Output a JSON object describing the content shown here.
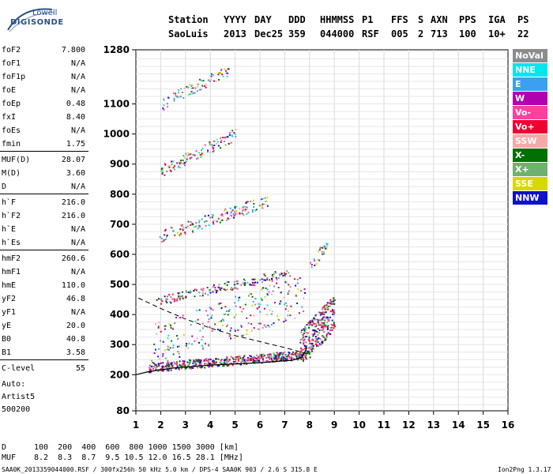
{
  "logo": {
    "line1": "Lowell",
    "line2": "DIGISONDE"
  },
  "header": {
    "row1": [
      "Station",
      "YYYY",
      "DAY",
      "DDD",
      "HHMMSS",
      "P1",
      "FFS",
      "S",
      "AXN",
      "PPS",
      "IGA",
      "PS"
    ],
    "row2": [
      "SaoLuis",
      "2013",
      "Dec25",
      "359",
      "044000",
      "RSF",
      "005",
      "2",
      "713",
      "100",
      "10+",
      "22"
    ]
  },
  "params": [
    {
      "k": "foF2",
      "v": "7.800"
    },
    {
      "k": "foF1",
      "v": "N/A"
    },
    {
      "k": "foF1p",
      "v": "N/A"
    },
    {
      "k": "foE",
      "v": "N/A"
    },
    {
      "k": "foEp",
      "v": "0.48"
    },
    {
      "k": "fxI",
      "v": "8.40"
    },
    {
      "k": "foEs",
      "v": "N/A"
    },
    {
      "k": "fmin",
      "v": "1.75"
    },
    {
      "k": "MUF(D)",
      "v": "28.07"
    },
    {
      "k": "M(D)",
      "v": "3.60"
    },
    {
      "k": "D",
      "v": "N/A"
    },
    {
      "k": "h`F",
      "v": "216.0"
    },
    {
      "k": "h`F2",
      "v": "216.0"
    },
    {
      "k": "h`E",
      "v": "N/A"
    },
    {
      "k": "h`Es",
      "v": "N/A"
    },
    {
      "k": "hmF2",
      "v": "260.6"
    },
    {
      "k": "hmF1",
      "v": "N/A"
    },
    {
      "k": "hmE",
      "v": "110.0"
    },
    {
      "k": "yF2",
      "v": "46.8"
    },
    {
      "k": "yF1",
      "v": "N/A"
    },
    {
      "k": "yE",
      "v": "20.0"
    },
    {
      "k": "B0",
      "v": "40.8"
    },
    {
      "k": "B1",
      "v": "3.58"
    },
    {
      "k": "C-level",
      "v": "55"
    }
  ],
  "auto": {
    "line1": "Auto:",
    "line2": "Artist5",
    "line3": "500200"
  },
  "legend": [
    {
      "label": "NoVal",
      "color": "#8c8c8c"
    },
    {
      "label": "NNE",
      "color": "#00e5ee"
    },
    {
      "label": "E",
      "color": "#3ca0f0"
    },
    {
      "label": "W",
      "color": "#b000b0"
    },
    {
      "label": "Vo-",
      "color": "#ff40a0"
    },
    {
      "label": "Vo+",
      "color": "#f00030"
    },
    {
      "label": "SSW",
      "color": "#f8a8a8"
    },
    {
      "label": "X-",
      "color": "#007000"
    },
    {
      "label": "X+",
      "color": "#70b070"
    },
    {
      "label": "SSE",
      "color": "#d8d800"
    },
    {
      "label": "NNW",
      "color": "#1010d0"
    }
  ],
  "bottom": {
    "d_label": "D",
    "d_values": "100  200  400  600  800 1000 1500 3000 [km]",
    "muf_label": "MUF",
    "muf_values": "8.2  8.3  8.7  9.5 10.5 12.0 16.5 28.1 [MHz]",
    "footer": "SAA0K_2013359044000.RSF / 300fx256h 50 kHz 5.0 km / DPS-4 SAA0K 903 / 2.6 S 315.8 E",
    "version": "Ion2Png 1.3.17"
  },
  "chart_data": {
    "type": "scatter",
    "x_ticks": [
      "1",
      "2",
      "3",
      "4",
      "5",
      "6",
      "7",
      "8",
      "9",
      "10",
      "11",
      "12",
      "13",
      "14",
      "15",
      "16"
    ],
    "y_ticks": [
      "80",
      "200",
      "300",
      "400",
      "500",
      "600",
      "700",
      "800",
      "900",
      "1000",
      "1100",
      "1280"
    ],
    "xlim": [
      1,
      16
    ],
    "ylim": [
      80,
      1280
    ],
    "grid": true
  }
}
